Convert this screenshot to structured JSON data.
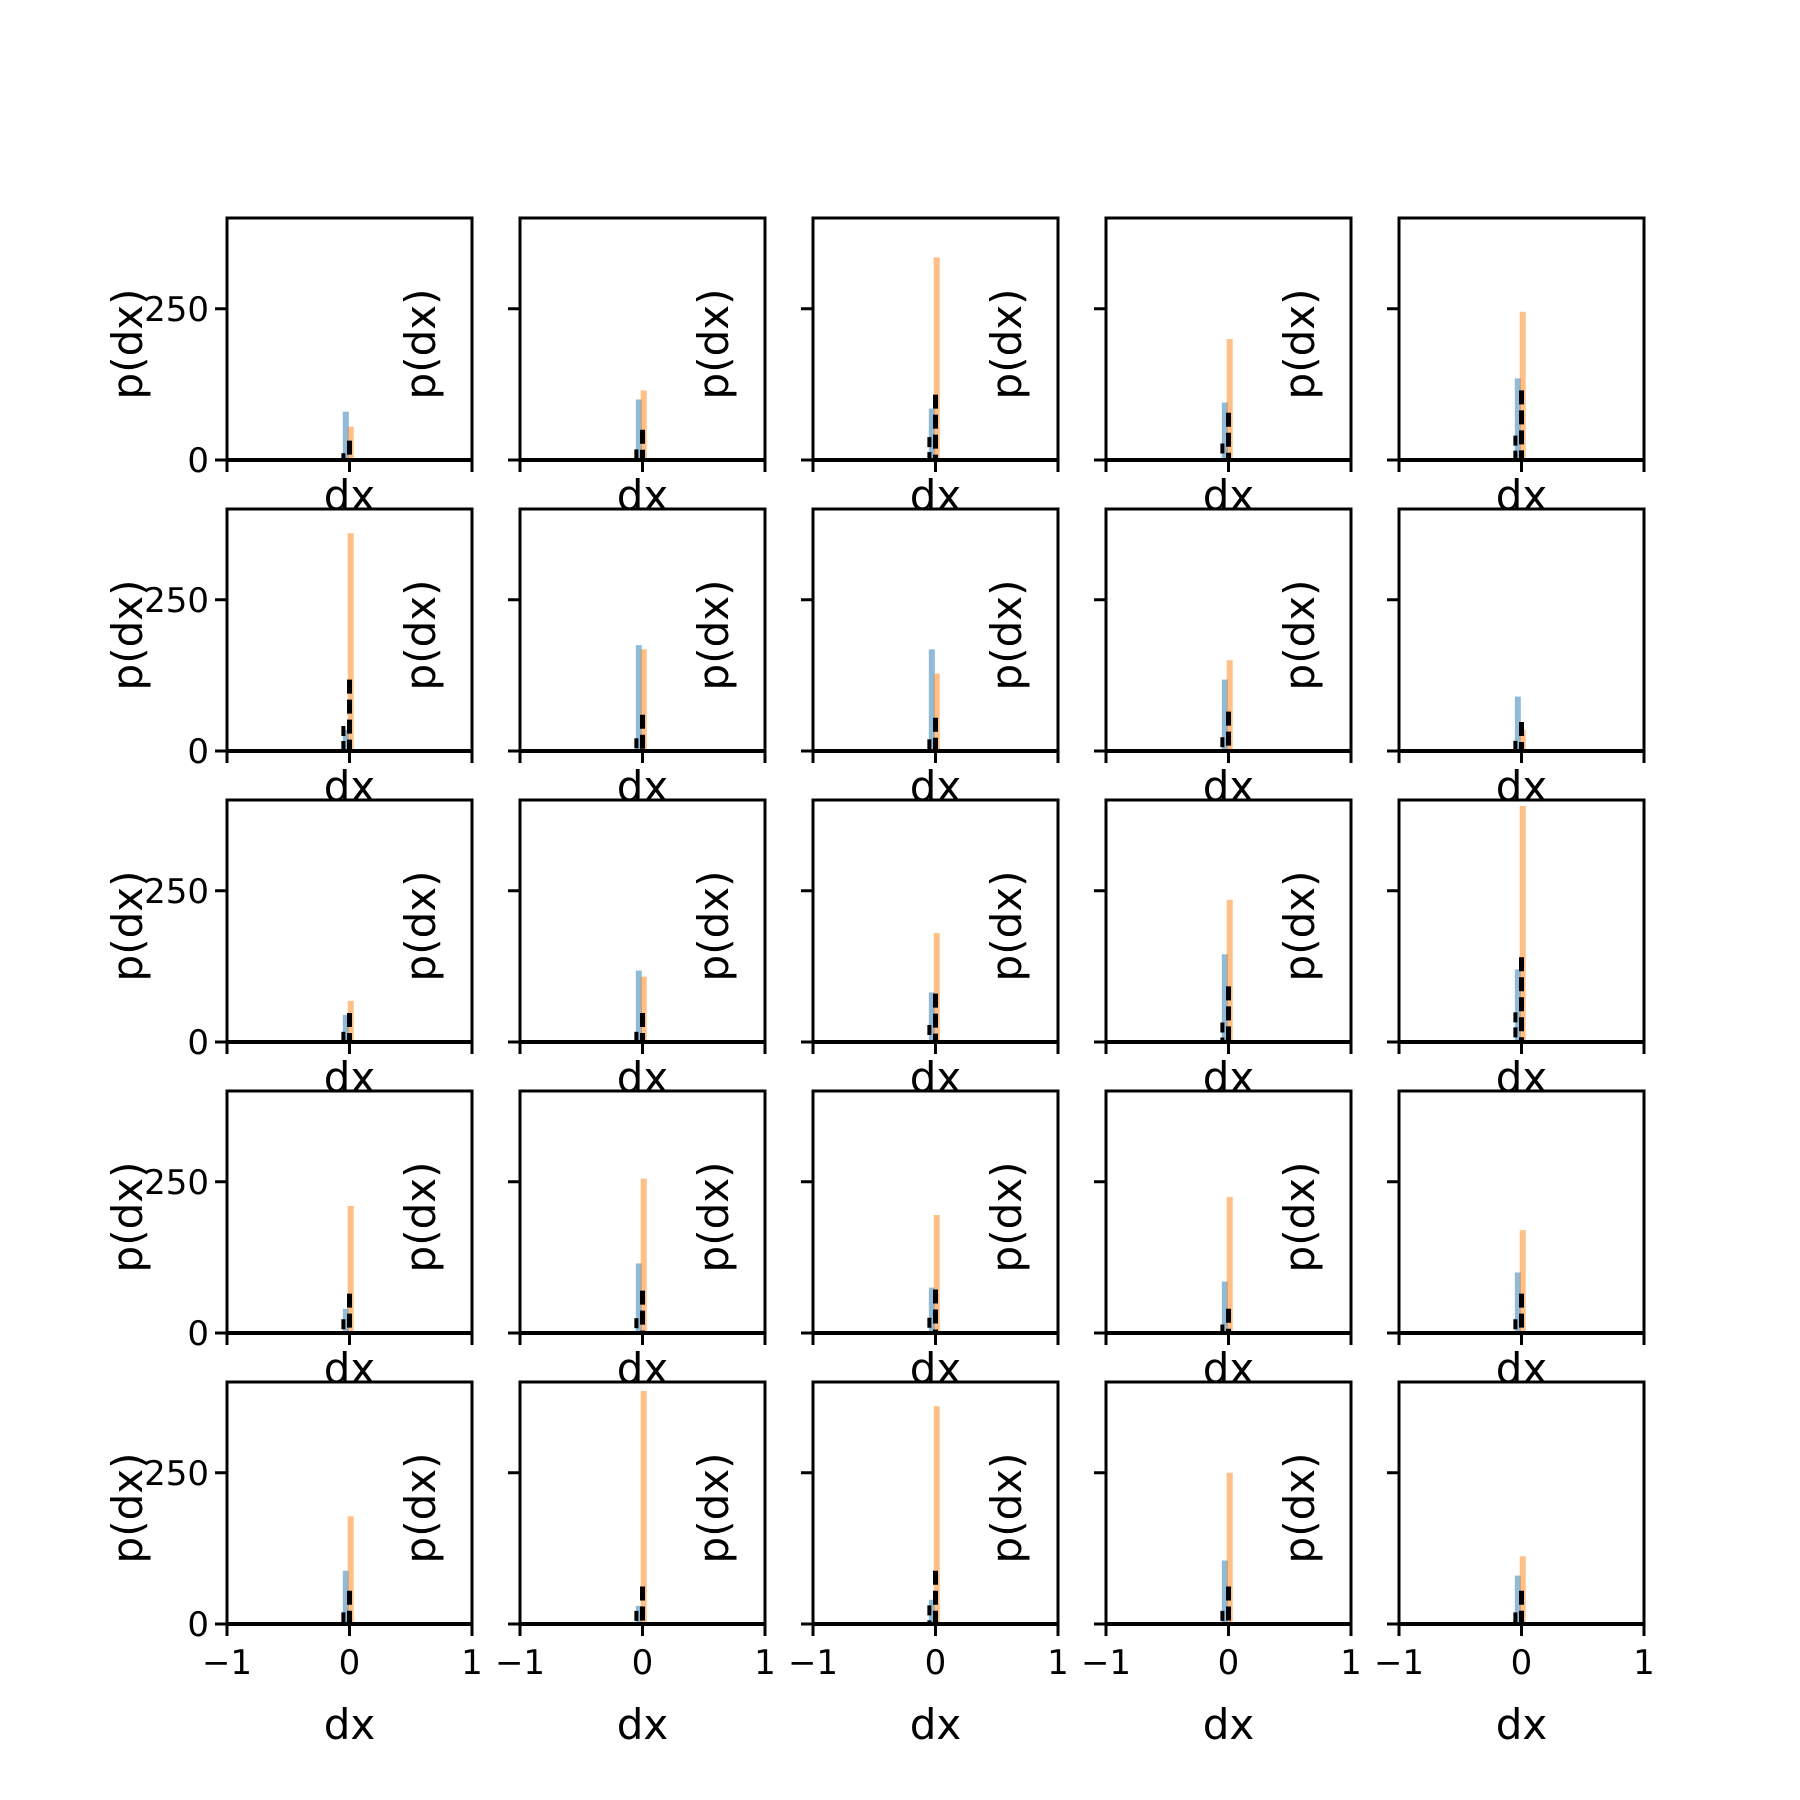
{
  "chart_data": {
    "type": "histogram-grid",
    "rows": 5,
    "cols": 5,
    "xlabel": "dx",
    "ylabel": "p(dx)",
    "xlim": [
      -1,
      1
    ],
    "ylim": [
      0,
      400
    ],
    "xticks": [
      -1,
      0,
      1
    ],
    "xtick_labels": [
      "−1",
      "0",
      "1"
    ],
    "yticks": [
      0,
      250
    ],
    "ytick_labels": [
      "0",
      "250"
    ],
    "series_colors": {
      "blue": "#1f77b4",
      "orange": "#ff7f0e",
      "black": "#000000"
    },
    "panels": [
      {
        "blue": 80,
        "orange": 55,
        "black": 32
      },
      {
        "blue": 100,
        "orange": 115,
        "black": 50
      },
      {
        "blue": 85,
        "orange": 335,
        "black": 108
      },
      {
        "blue": 95,
        "orange": 200,
        "black": 78
      },
      {
        "blue": 135,
        "orange": 245,
        "black": 115
      },
      {
        "blue": 35,
        "orange": 360,
        "black": 118
      },
      {
        "blue": 175,
        "orange": 168,
        "black": 60
      },
      {
        "blue": 168,
        "orange": 128,
        "black": 55
      },
      {
        "blue": 118,
        "orange": 150,
        "black": 65
      },
      {
        "blue": 90,
        "orange": 35,
        "black": 48
      },
      {
        "blue": 45,
        "orange": 68,
        "black": 48
      },
      {
        "blue": 118,
        "orange": 108,
        "black": 48
      },
      {
        "blue": 82,
        "orange": 180,
        "black": 80
      },
      {
        "blue": 145,
        "orange": 235,
        "black": 92
      },
      {
        "blue": 120,
        "orange": 390,
        "black": 140
      },
      {
        "blue": 40,
        "orange": 210,
        "black": 65
      },
      {
        "blue": 115,
        "orange": 255,
        "black": 70
      },
      {
        "blue": 75,
        "orange": 195,
        "black": 72
      },
      {
        "blue": 85,
        "orange": 225,
        "black": 40
      },
      {
        "blue": 100,
        "orange": 170,
        "black": 65
      },
      {
        "blue": 88,
        "orange": 178,
        "black": 55
      },
      {
        "blue": 30,
        "orange": 385,
        "black": 62
      },
      {
        "blue": 40,
        "orange": 360,
        "black": 88
      },
      {
        "blue": 105,
        "orange": 250,
        "black": 62
      },
      {
        "blue": 80,
        "orange": 112,
        "black": 55
      }
    ]
  }
}
